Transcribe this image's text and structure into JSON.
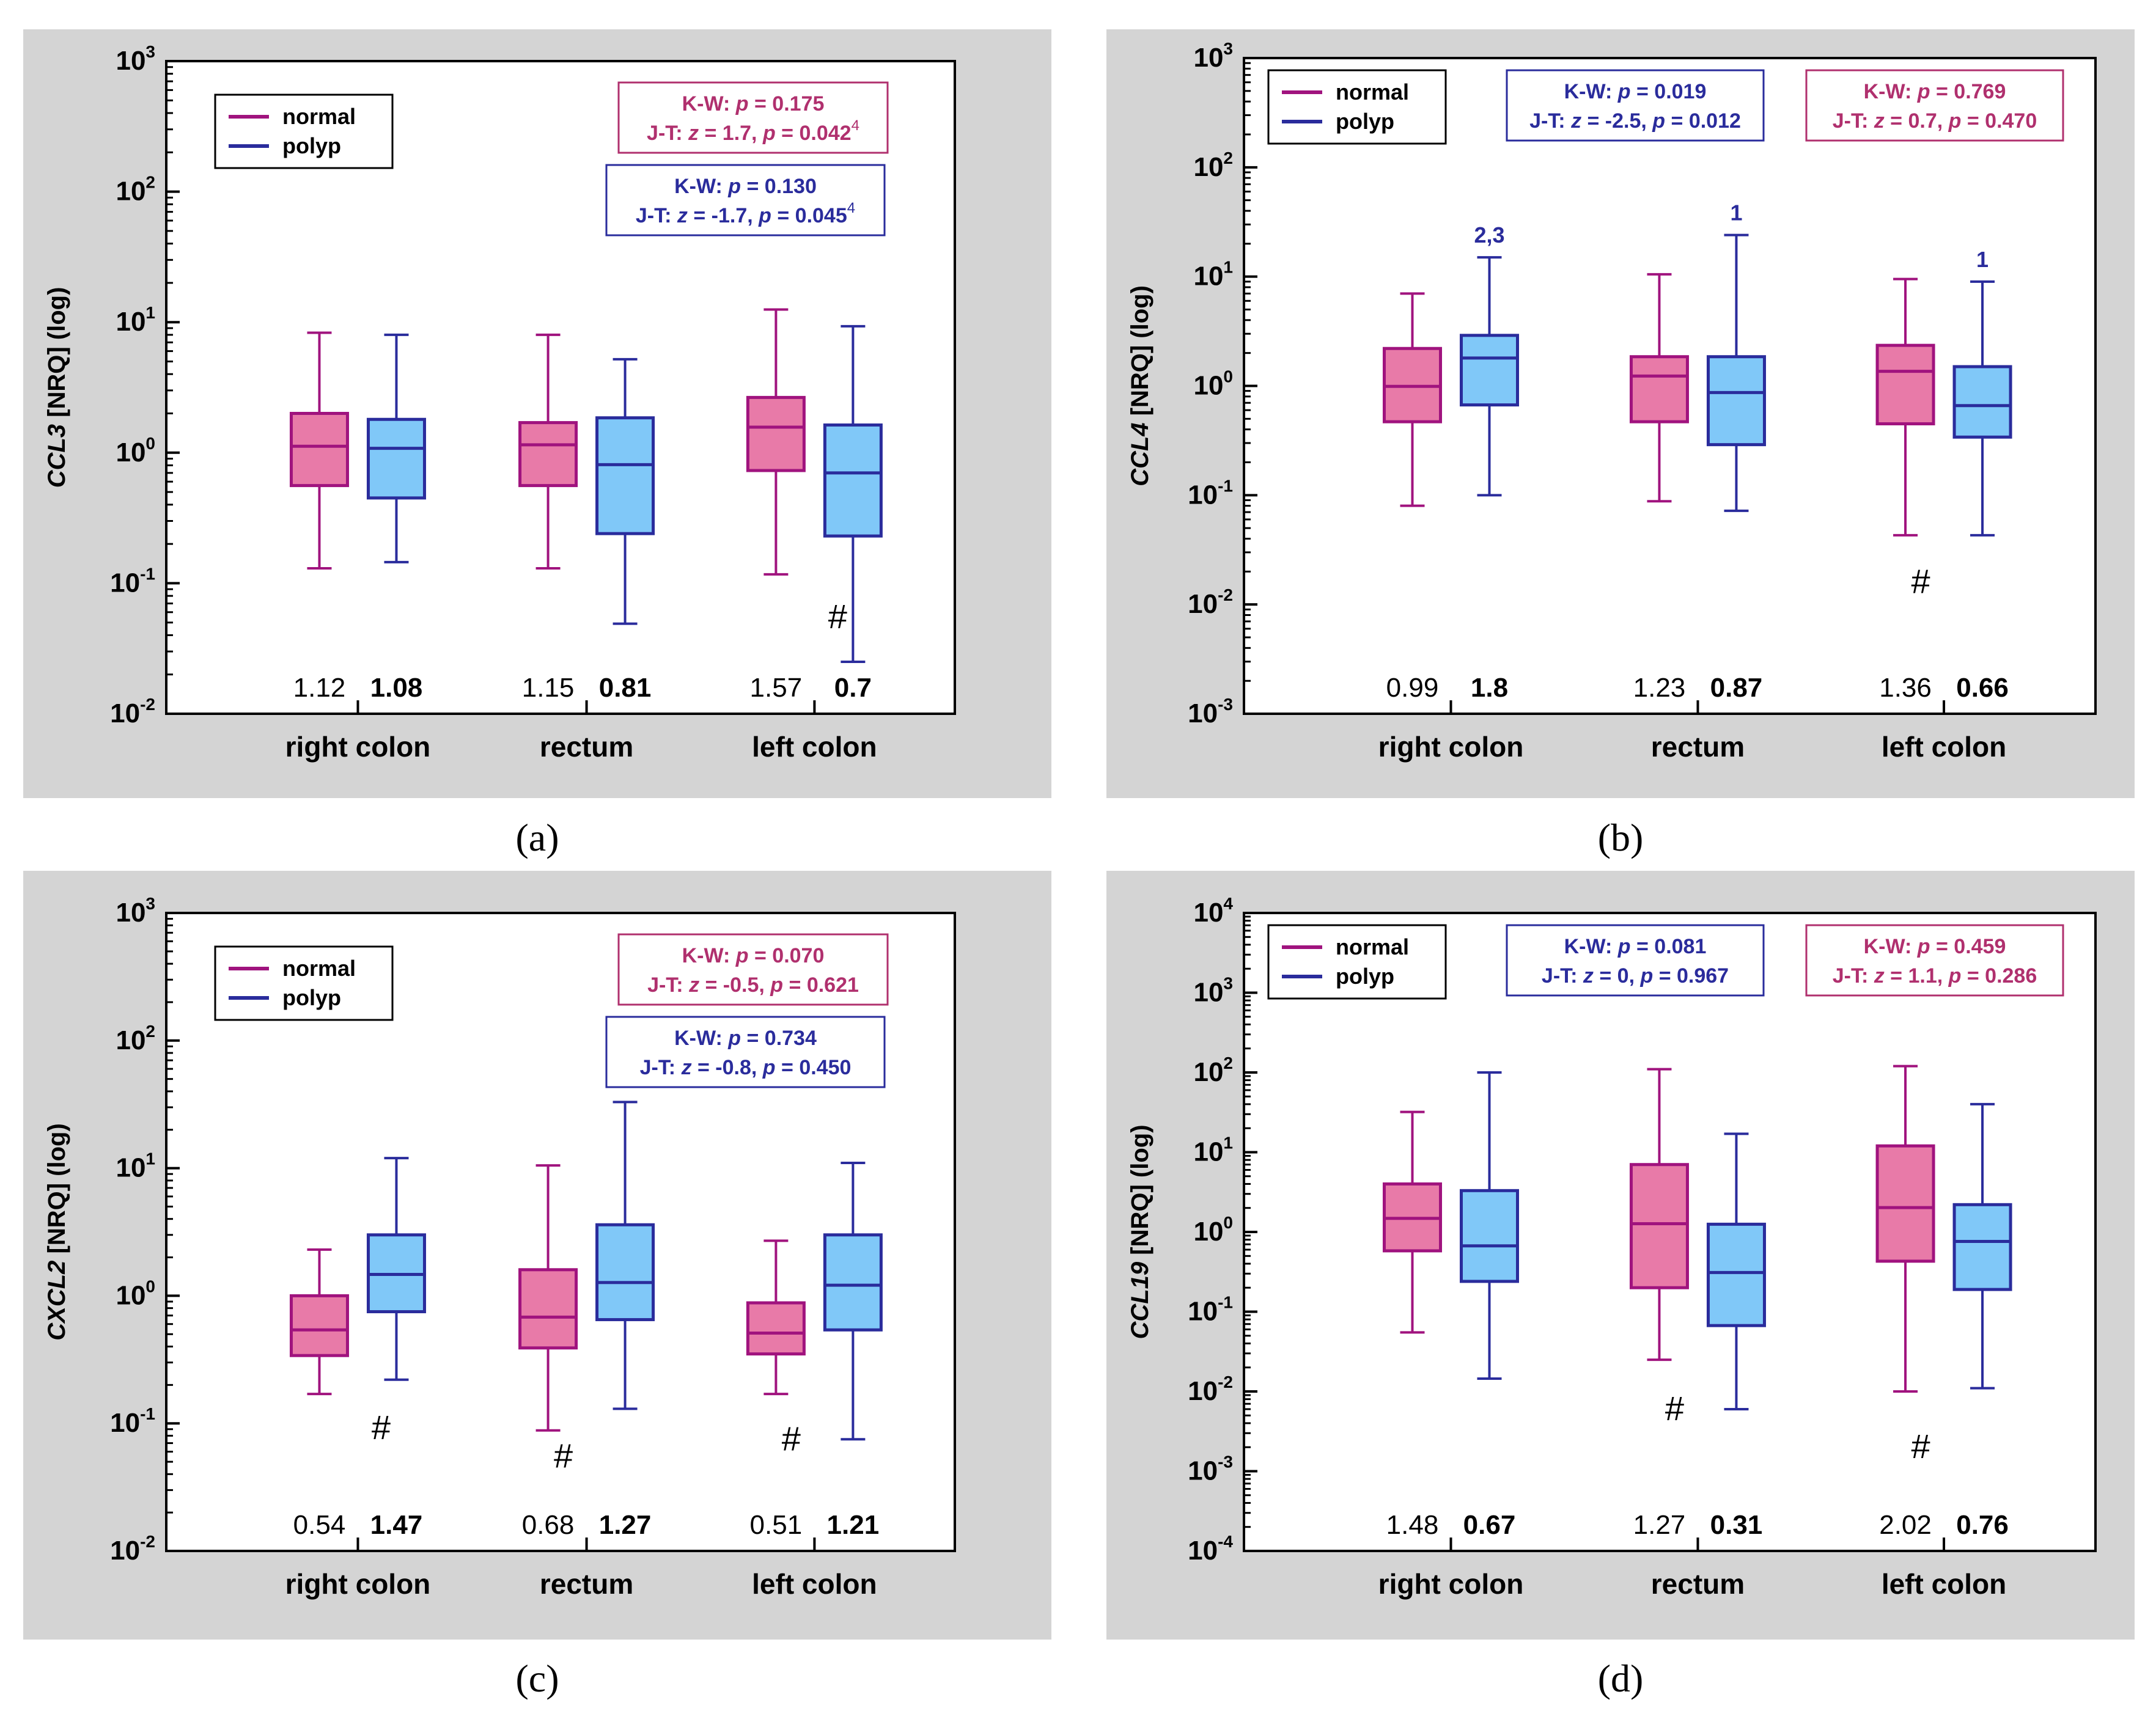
{
  "colors": {
    "panel_bg": "#d4d4d4",
    "plot_bg": "#ffffff",
    "normal_fill": "#e87aa8",
    "normal_stroke": "#a0137e",
    "polyp_fill": "#80c8f8",
    "polyp_stroke": "#2a2c9c",
    "normal_text": "#b0306e",
    "polyp_text": "#2a2c9c"
  },
  "legend": {
    "normal": "normal",
    "polyp": "polyp"
  },
  "chart_data": [
    {
      "type": "box",
      "panel_label": "(a)",
      "ylabel_gene": "CCL3",
      "ylabel_rest": " [NRQ] (log)",
      "ylim_exp": [
        -2,
        3
      ],
      "categories": [
        "right colon",
        "rectum",
        "left colon"
      ],
      "series": [
        {
          "name": "normal",
          "boxes": [
            {
              "min": 0.13,
              "q1": 0.56,
              "median": 1.12,
              "q3": 2.0,
              "max": 8.3
            },
            {
              "min": 0.13,
              "q1": 0.56,
              "median": 1.15,
              "q3": 1.7,
              "max": 8.0
            },
            {
              "min": 0.117,
              "q1": 0.73,
              "median": 1.57,
              "q3": 2.65,
              "max": 12.5
            }
          ]
        },
        {
          "name": "polyp",
          "boxes": [
            {
              "min": 0.145,
              "q1": 0.45,
              "median": 1.08,
              "q3": 1.8,
              "max": 8.0
            },
            {
              "min": 0.049,
              "q1": 0.24,
              "median": 0.81,
              "q3": 1.85,
              "max": 5.2
            },
            {
              "min": 0.025,
              "q1": 0.23,
              "median": 0.7,
              "q3": 1.63,
              "max": 9.3
            }
          ]
        }
      ],
      "median_labels": [
        {
          "normal": "1.12",
          "polyp": "1.08"
        },
        {
          "normal": "1.15",
          "polyp": "0.81"
        },
        {
          "normal": "1.57",
          "polyp": "0.7"
        }
      ],
      "hash_marks": [
        {
          "category": 2,
          "series": "polyp",
          "text": "#",
          "value": 0.055
        }
      ],
      "superscripts": [],
      "stat_boxes": [
        {
          "series": "normal",
          "position": "top-right-upper",
          "line1_label": "K-W: ",
          "line1_p": "p",
          "line1_value": " = 0.175",
          "line2_label": "J-T: ",
          "line2_z": "z",
          "line2_zval": " = 1.7, ",
          "line2_p": "p",
          "line2_pval": " = 0.042",
          "line2_sup": "4"
        },
        {
          "series": "polyp",
          "position": "top-right-lower",
          "line1_label": "K-W: ",
          "line1_p": "p",
          "line1_value": " = 0.130",
          "line2_label": "J-T: ",
          "line2_z": "z",
          "line2_zval": " = -1.7, ",
          "line2_p": "p",
          "line2_pval": " = 0.045",
          "line2_sup": "4"
        }
      ]
    },
    {
      "type": "box",
      "panel_label": "(b)",
      "ylabel_gene": "CCL4",
      "ylabel_rest": "  [NRQ] (log)",
      "ylim_exp": [
        -3,
        3
      ],
      "categories": [
        "right colon",
        "rectum",
        "left colon"
      ],
      "series": [
        {
          "name": "normal",
          "boxes": [
            {
              "min": 0.08,
              "q1": 0.47,
              "median": 0.99,
              "q3": 2.2,
              "max": 7.0
            },
            {
              "min": 0.088,
              "q1": 0.47,
              "median": 1.23,
              "q3": 1.85,
              "max": 10.5
            },
            {
              "min": 0.043,
              "q1": 0.45,
              "median": 1.36,
              "q3": 2.35,
              "max": 9.5
            }
          ]
        },
        {
          "name": "polyp",
          "boxes": [
            {
              "min": 0.1,
              "q1": 0.67,
              "median": 1.8,
              "q3": 2.9,
              "max": 15.0
            },
            {
              "min": 0.072,
              "q1": 0.29,
              "median": 0.87,
              "q3": 1.85,
              "max": 24.0
            },
            {
              "min": 0.043,
              "q1": 0.34,
              "median": 0.66,
              "q3": 1.5,
              "max": 9.0
            }
          ]
        }
      ],
      "median_labels": [
        {
          "normal": "0.99",
          "polyp": "1.8"
        },
        {
          "normal": "1.23",
          "polyp": "0.87"
        },
        {
          "normal": "1.36",
          "polyp": "0.66"
        }
      ],
      "hash_marks": [
        {
          "category": 2,
          "series": "normal",
          "text": "#",
          "value": 0.016
        }
      ],
      "superscripts": [
        {
          "category": 0,
          "series": "polyp",
          "text": "2,3"
        },
        {
          "category": 1,
          "series": "polyp",
          "text": "1"
        },
        {
          "category": 2,
          "series": "polyp",
          "text": "1"
        }
      ],
      "stat_boxes": [
        {
          "series": "polyp",
          "position": "top-middle",
          "line1_label": "K-W: ",
          "line1_p": "p",
          "line1_value": " = 0.019",
          "line2_label": "J-T: ",
          "line2_z": "z",
          "line2_zval": " = -2.5, ",
          "line2_p": "p",
          "line2_pval": " = 0.012",
          "line2_sup": ""
        },
        {
          "series": "normal",
          "position": "top-right",
          "line1_label": "K-W: ",
          "line1_p": "p",
          "line1_value": " = 0.769",
          "line2_label": "J-T: ",
          "line2_z": "z",
          "line2_zval": " = 0.7, ",
          "line2_p": "p",
          "line2_pval": " = 0.470",
          "line2_sup": ""
        }
      ]
    },
    {
      "type": "box",
      "panel_label": "(c)",
      "ylabel_gene": "CXCL2",
      "ylabel_rest": " [NRQ] (log)",
      "ylim_exp": [
        -2,
        3
      ],
      "categories": [
        "right colon",
        "rectum",
        "left colon"
      ],
      "series": [
        {
          "name": "normal",
          "boxes": [
            {
              "min": 0.17,
              "q1": 0.34,
              "median": 0.54,
              "q3": 1.0,
              "max": 2.3
            },
            {
              "min": 0.088,
              "q1": 0.39,
              "median": 0.68,
              "q3": 1.6,
              "max": 10.5
            },
            {
              "min": 0.17,
              "q1": 0.35,
              "median": 0.51,
              "q3": 0.88,
              "max": 2.7
            }
          ]
        },
        {
          "name": "polyp",
          "boxes": [
            {
              "min": 0.22,
              "q1": 0.75,
              "median": 1.47,
              "q3": 3.0,
              "max": 12.0
            },
            {
              "min": 0.13,
              "q1": 0.65,
              "median": 1.27,
              "q3": 3.6,
              "max": 33.0
            },
            {
              "min": 0.075,
              "q1": 0.54,
              "median": 1.21,
              "q3": 3.0,
              "max": 11.0
            }
          ]
        }
      ],
      "median_labels": [
        {
          "normal": "0.54",
          "polyp": "1.47"
        },
        {
          "normal": "0.68",
          "polyp": "1.27"
        },
        {
          "normal": "0.51",
          "polyp": "1.21"
        }
      ],
      "hash_marks": [
        {
          "category": 0,
          "series": "polyp",
          "text": "#",
          "value": 0.092
        },
        {
          "category": 1,
          "series": "normal",
          "text": "#",
          "value": 0.055
        },
        {
          "category": 2,
          "series": "normal",
          "text": "#",
          "value": 0.075
        }
      ],
      "superscripts": [],
      "stat_boxes": [
        {
          "series": "normal",
          "position": "top-right-upper",
          "line1_label": "K-W: ",
          "line1_p": "p",
          "line1_value": " = 0.070",
          "line2_label": "J-T: ",
          "line2_z": "z",
          "line2_zval": " = -0.5, ",
          "line2_p": "p",
          "line2_pval": " = 0.621",
          "line2_sup": ""
        },
        {
          "series": "polyp",
          "position": "top-right-lower",
          "line1_label": "K-W: ",
          "line1_p": "p",
          "line1_value": " = 0.734",
          "line2_label": "J-T: ",
          "line2_z": "z",
          "line2_zval": " = -0.8, ",
          "line2_p": "p",
          "line2_pval": " = 0.450",
          "line2_sup": ""
        }
      ]
    },
    {
      "type": "box",
      "panel_label": "(d)",
      "ylabel_gene": "CCL19",
      "ylabel_rest": "  [NRQ] (log)",
      "ylim_exp": [
        -4,
        4
      ],
      "categories": [
        "right colon",
        "rectum",
        "left colon"
      ],
      "series": [
        {
          "name": "normal",
          "boxes": [
            {
              "min": 0.055,
              "q1": 0.58,
              "median": 1.48,
              "q3": 4.0,
              "max": 32.0
            },
            {
              "min": 0.025,
              "q1": 0.2,
              "median": 1.27,
              "q3": 7.0,
              "max": 110.0
            },
            {
              "min": 0.01,
              "q1": 0.43,
              "median": 2.02,
              "q3": 12.0,
              "max": 120.0
            }
          ]
        },
        {
          "name": "polyp",
          "boxes": [
            {
              "min": 0.0145,
              "q1": 0.24,
              "median": 0.67,
              "q3": 3.3,
              "max": 100.0
            },
            {
              "min": 0.006,
              "q1": 0.067,
              "median": 0.31,
              "q3": 1.25,
              "max": 17.0
            },
            {
              "min": 0.011,
              "q1": 0.19,
              "median": 0.76,
              "q3": 2.2,
              "max": 40.0
            }
          ]
        }
      ],
      "median_labels": [
        {
          "normal": "1.48",
          "polyp": "0.67"
        },
        {
          "normal": "1.27",
          "polyp": "0.31"
        },
        {
          "normal": "2.02",
          "polyp": "0.76"
        }
      ],
      "hash_marks": [
        {
          "category": 1,
          "series": "normal",
          "text": "#",
          "value": 0.006
        },
        {
          "category": 2,
          "series": "normal",
          "text": "#",
          "value": 0.002
        }
      ],
      "superscripts": [],
      "stat_boxes": [
        {
          "series": "polyp",
          "position": "top-middle",
          "line1_label": "K-W: ",
          "line1_p": "p",
          "line1_value": " = 0.081",
          "line2_label": "J-T: ",
          "line2_z": "z",
          "line2_zval": " = 0, ",
          "line2_p": "p",
          "line2_pval": " = 0.967",
          "line2_sup": ""
        },
        {
          "series": "normal",
          "position": "top-right",
          "line1_label": "K-W: ",
          "line1_p": "p",
          "line1_value": " = 0.459",
          "line2_label": "J-T: ",
          "line2_z": "z",
          "line2_zval": " = 1.1, ",
          "line2_p": "p",
          "line2_pval": " = 0.286",
          "line2_sup": ""
        }
      ]
    }
  ]
}
